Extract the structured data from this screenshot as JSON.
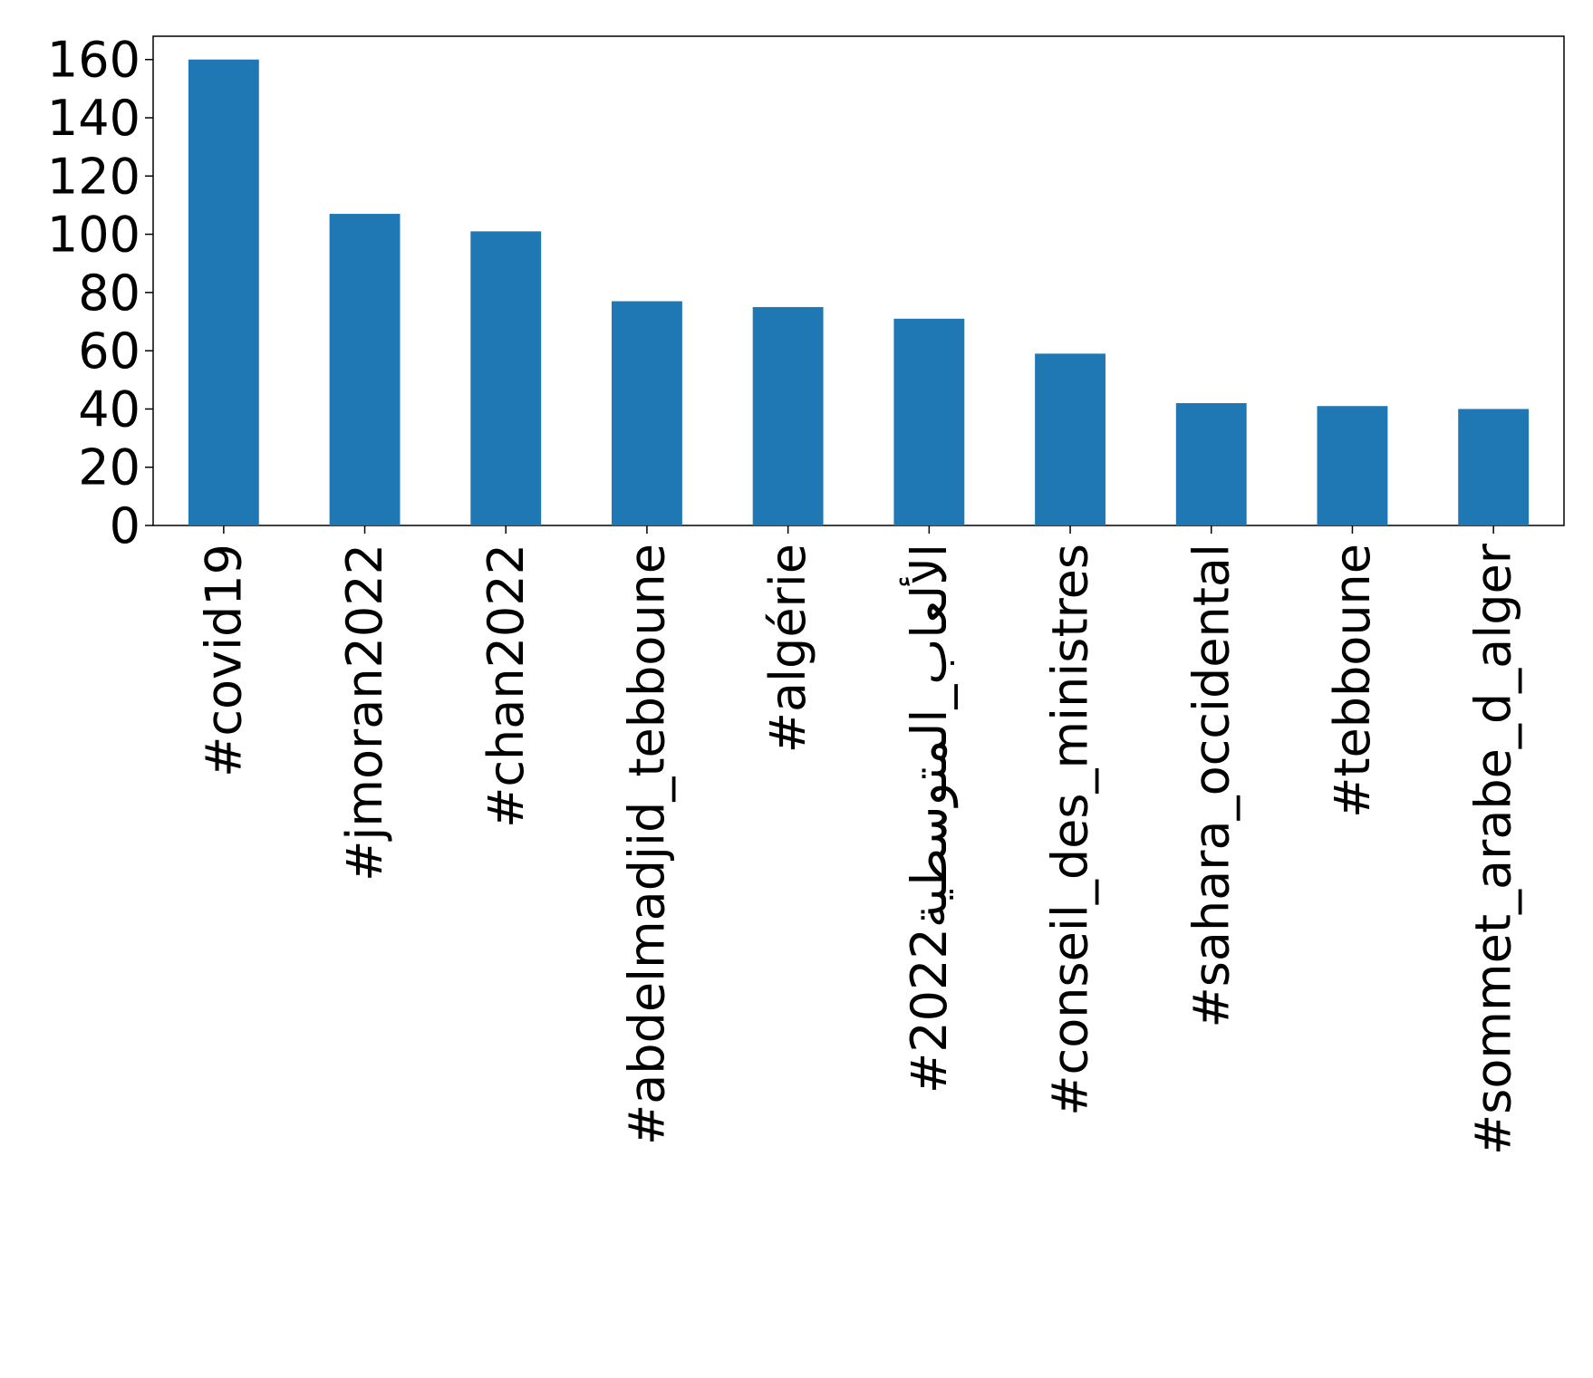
{
  "chart_data": {
    "type": "bar",
    "categories": [
      "#covid19",
      "#jmoran2022",
      "#chan2022",
      "#abdelmadjid_tebboune",
      "#algérie",
      "#الألعاب_المتوسطية2022",
      "#conseil_des_ministres",
      "#sahara_occidental",
      "#tebboune",
      "#sommet_arabe_d_alger"
    ],
    "values": [
      160,
      107,
      101,
      77,
      75,
      71,
      59,
      42,
      41,
      40
    ],
    "ylim": [
      0,
      168
    ],
    "yticks": [
      0,
      20,
      40,
      60,
      80,
      100,
      120,
      140,
      160
    ],
    "bar_color": "#1f77b4",
    "grid": false,
    "legend": "none"
  }
}
